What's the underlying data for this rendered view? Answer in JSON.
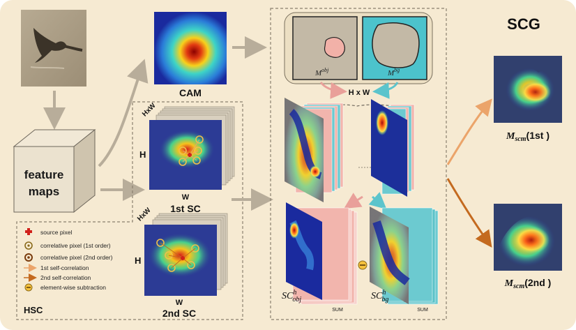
{
  "title": "SCG",
  "input_image": {
    "name": "bird photograph"
  },
  "feature_maps": {
    "label_line1": "feature",
    "label_line2": "maps"
  },
  "cam": {
    "label": "CAM"
  },
  "hsc": {
    "label": "HSC",
    "first_sc": {
      "label": "1st  SC",
      "hxw": "HxW",
      "h": "H",
      "w": "W"
    },
    "second_sc": {
      "label": "2nd SC",
      "hxw": "HxW",
      "h": "H",
      "w": "W"
    }
  },
  "masks": {
    "obj_base": "M",
    "obj_sup": "obj",
    "bg_base": "M",
    "bg_sup": "bg",
    "hw_label": "H x W"
  },
  "sc_outputs": {
    "obj_base": "SC",
    "obj_sup": "h",
    "obj_sub": "obj",
    "bg_base": "SC",
    "bg_sup": "h",
    "bg_sub": "bg",
    "sum_label": "SUM",
    "minus": "⊖"
  },
  "results": {
    "first": {
      "base": "M",
      "sub": "scm",
      "suffix": "(1st )"
    },
    "second": {
      "base": "M",
      "sub": "scm",
      "suffix": "(2nd )"
    }
  },
  "legend": [
    {
      "icon": "source-pixel-icon",
      "label": "source pixel"
    },
    {
      "icon": "correlative-pixel-1st-icon",
      "label": "correlative pixel (1st order)"
    },
    {
      "icon": "correlative-pixel-2nd-icon",
      "label": "correlative pixel (2nd order)"
    },
    {
      "icon": "arrow-1st-icon",
      "label": "1st self-correlation"
    },
    {
      "icon": "arrow-2nd-icon",
      "label": "2nd self-correlation"
    },
    {
      "icon": "subtraction-icon",
      "label": "element-wise subtraction"
    }
  ],
  "colors": {
    "background": "#f6ead2",
    "arrow_gray": "#b8ad9a",
    "arrow_pink": "#e9a09a",
    "arrow_cyan": "#5cc4cc",
    "arrow_orange_light": "#eba46a",
    "arrow_orange_dark": "#c46a1f",
    "mask_bg": "#4cc3cc",
    "mask_obj": "#f2b1a8",
    "mask_gray": "#c3b9a6"
  }
}
